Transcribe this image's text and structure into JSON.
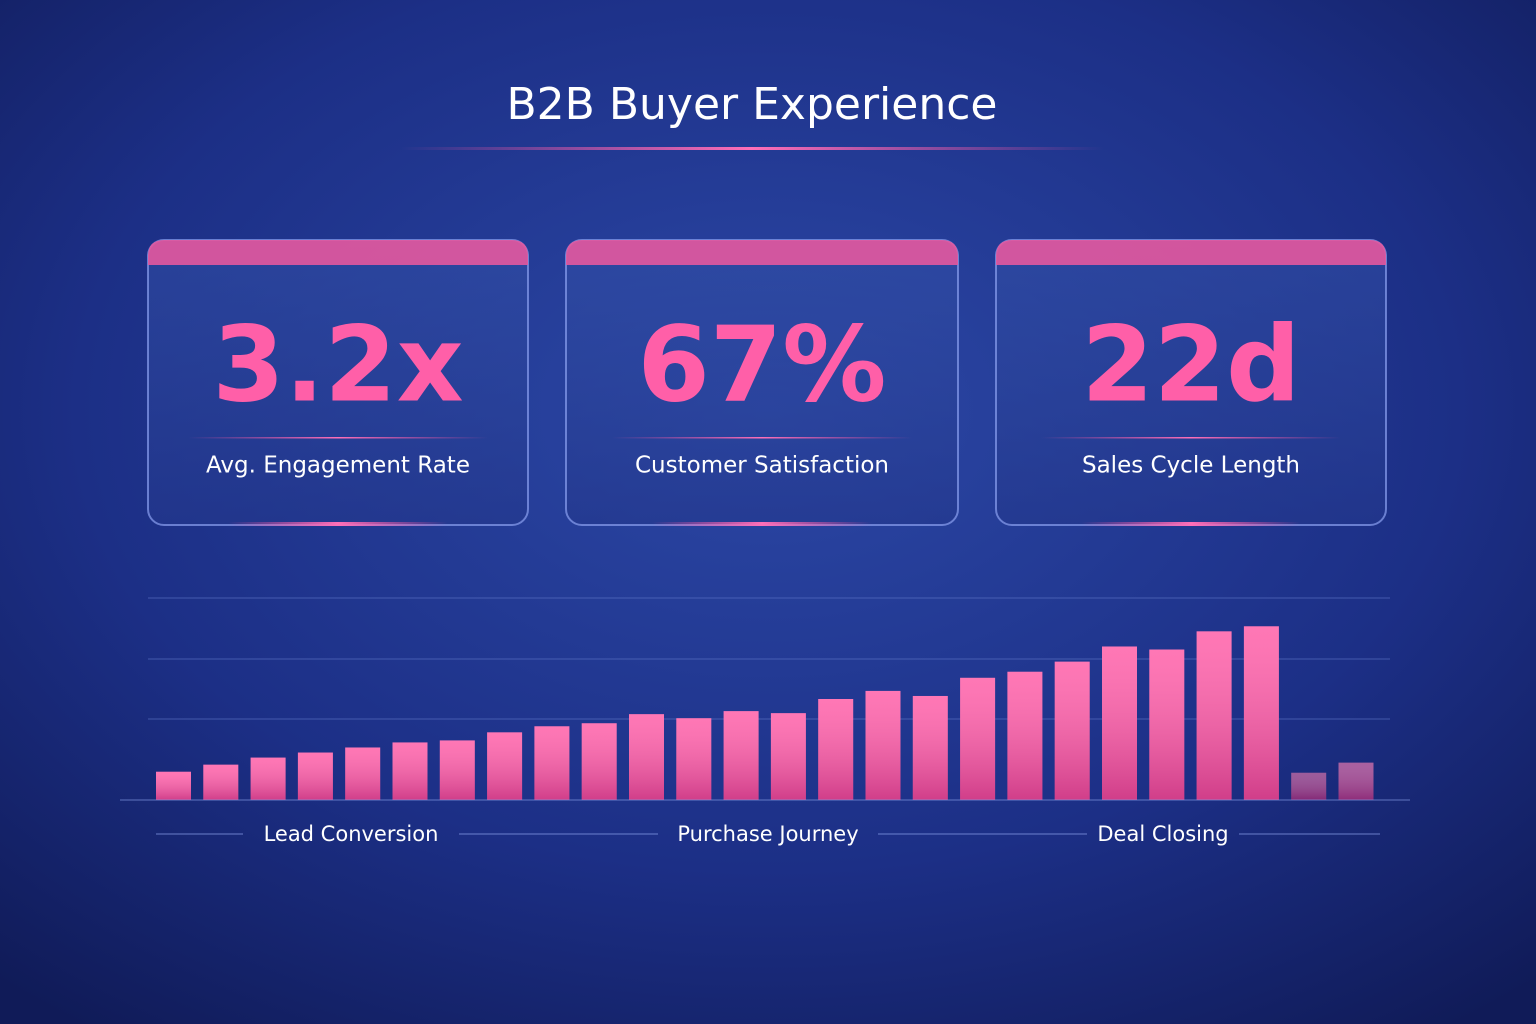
{
  "header": {
    "title": "B2B Buyer Experience"
  },
  "kpis": [
    {
      "value": "3.2x",
      "label": "Avg. Engagement Rate"
    },
    {
      "value": "67%",
      "label": "Customer Satisfaction"
    },
    {
      "value": "22d",
      "label": "Sales Cycle Length"
    }
  ],
  "chart_data": {
    "type": "bar",
    "values": [
      28,
      35,
      42,
      47,
      52,
      57,
      59,
      67,
      73,
      76,
      85,
      81,
      88,
      86,
      100,
      108,
      103,
      121,
      127,
      137,
      152,
      149,
      167,
      172,
      27,
      37
    ],
    "colors": [
      "#ff5fa8",
      "#ff5fa8",
      "#ff5fa8",
      "#ff5fa8",
      "#ff5fa8",
      "#ff5fa8",
      "#ff5fa8",
      "#ff5fa8",
      "#ff5fa8",
      "#ff5fa8",
      "#ff5fa8",
      "#ff5fa8",
      "#ff5fa8",
      "#ff5fa8",
      "#ff5fa8",
      "#ff5fa8",
      "#ff5fa8",
      "#ff5fa8",
      "#ff5fa8",
      "#ff5fa8",
      "#ff5fa8",
      "#ff5fa8",
      "#ff5fa8",
      "#ff5fa8",
      "#8a3f8a",
      "#9a4590"
    ],
    "ylim": [
      0,
      200
    ],
    "phases": [
      "Lead Conversion",
      "Purchase Journey",
      "Deal Closing"
    ]
  }
}
